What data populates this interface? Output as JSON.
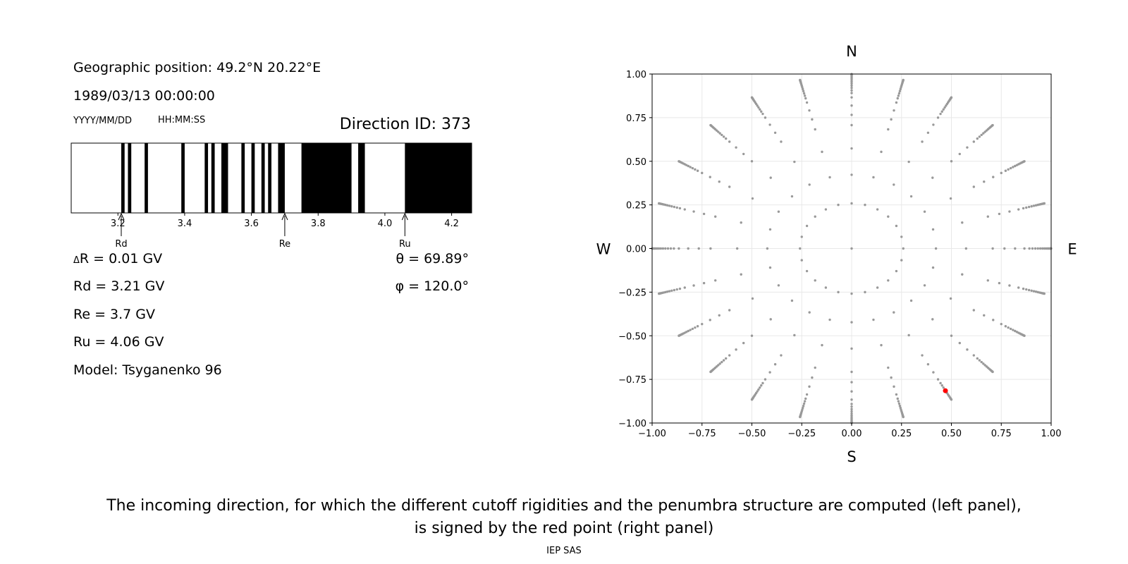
{
  "left_panel": {
    "geo_position": "Geographic position: 49.2°N 20.22°E",
    "datetime": "1989/03/13 00:00:00",
    "date_format": "YYYY/MM/DD",
    "time_format": "HH:MM:SS",
    "direction_id": "Direction ID: 373",
    "delta_r": "R = 0.01 GV",
    "delta_symbol": "Δ",
    "rd_text": "Rd = 3.21 GV",
    "re_text": "Re = 3.7 GV",
    "ru_text": "Ru = 4.06 GV",
    "model": "Model: Tsyganenko 96",
    "theta": "θ = 69.89°",
    "phi": "φ = 120.0°",
    "markers": [
      {
        "label": "Rd",
        "value": 3.21
      },
      {
        "label": "Re",
        "value": 3.7
      },
      {
        "label": "Ru",
        "value": 4.06
      }
    ]
  },
  "chart_data": [
    {
      "type": "bar",
      "description_kind": "penumbra-structure",
      "xlim": [
        3.06,
        4.26
      ],
      "xticks": [
        3.2,
        3.4,
        3.6,
        3.8,
        4.0,
        4.2
      ],
      "forbidden_intervals": [
        [
          3.21,
          3.22
        ],
        [
          3.23,
          3.24
        ],
        [
          3.28,
          3.29
        ],
        [
          3.39,
          3.4
        ],
        [
          3.46,
          3.47
        ],
        [
          3.48,
          3.49
        ],
        [
          3.51,
          3.53
        ],
        [
          3.57,
          3.58
        ],
        [
          3.6,
          3.61
        ],
        [
          3.63,
          3.64
        ],
        [
          3.65,
          3.66
        ],
        [
          3.68,
          3.7
        ],
        [
          3.75,
          3.9
        ],
        [
          3.92,
          3.94
        ],
        [
          4.06,
          4.26
        ]
      ],
      "colors": {
        "allowed": "#ffffff",
        "forbidden": "#000000"
      }
    },
    {
      "type": "scatter",
      "xlim": [
        -1.0,
        1.0
      ],
      "ylim": [
        -1.0,
        1.0
      ],
      "xticks": [
        -1.0,
        -0.75,
        -0.5,
        -0.25,
        0.0,
        0.25,
        0.5,
        0.75,
        1.0
      ],
      "yticks": [
        -1.0,
        -0.75,
        -0.5,
        -0.25,
        0.0,
        0.25,
        0.5,
        0.75,
        1.0
      ],
      "xtick_labels": [
        "−1.00",
        "−0.75",
        "−0.50",
        "−0.25",
        "0.00",
        "0.25",
        "0.50",
        "0.75",
        "1.00"
      ],
      "ytick_labels": [
        "−1.00",
        "−0.75",
        "−0.50",
        "−0.25",
        "0.00",
        "0.25",
        "0.50",
        "0.75",
        "1.00"
      ],
      "grid": true,
      "compass": {
        "north": "N",
        "south": "S",
        "west": "W",
        "east": "E"
      },
      "grid_pattern": {
        "azimuth_count": 24,
        "zenith_angles_deg": [
          0,
          15,
          25,
          35,
          45,
          50,
          55,
          60,
          63,
          65,
          67,
          69,
          71,
          73,
          75,
          77,
          79,
          81,
          83,
          85,
          87,
          89
        ],
        "point_color": "#999999"
      },
      "selected_point": {
        "x": 0.47,
        "y": -0.815,
        "color": "#ff0000",
        "zenith_deg": 69.89,
        "azimuth_deg": 120.0
      }
    }
  ],
  "caption": {
    "line1": "The incoming direction, for which the different cutoff rigidities and the penumbra structure are computed (left panel),",
    "line2": "is signed by the red point (right panel)"
  },
  "credit": "IEP SAS"
}
